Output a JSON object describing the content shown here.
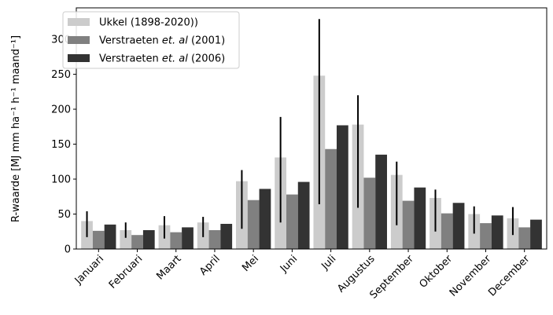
{
  "chart_data": {
    "type": "bar",
    "title": "",
    "xlabel": "",
    "ylabel": "R-waarde [MJ mm ha⁻¹ h⁻¹ maand⁻¹]",
    "ylim": [
      0,
      345
    ],
    "yticks": [
      0,
      50,
      100,
      150,
      200,
      250,
      300
    ],
    "legend_position": "top-left",
    "categories": [
      "Januari",
      "Februari",
      "Maart",
      "April",
      "Mei",
      "Juni",
      "Juli",
      "Augustus",
      "September",
      "Oktober",
      "November",
      "December"
    ],
    "series": [
      {
        "name": "Ukkel (1898-2020))",
        "color": "#cccccc",
        "values": [
          40,
          27,
          34,
          38,
          97,
          131,
          248,
          178,
          106,
          73,
          50,
          44
        ],
        "error_low": [
          17,
          16,
          15,
          17,
          29,
          38,
          64,
          59,
          34,
          25,
          22,
          20
        ],
        "error_high": [
          54,
          38,
          47,
          46,
          113,
          189,
          329,
          220,
          125,
          85,
          61,
          60
        ]
      },
      {
        "name": "Verstraeten et. al (2001)",
        "name_prefix": "Verstraeten ",
        "name_italic": "et. al",
        "name_suffix": " (2001)",
        "color": "#808080",
        "values": [
          26,
          20,
          24,
          27,
          70,
          78,
          143,
          102,
          69,
          51,
          37,
          31
        ]
      },
      {
        "name": "Verstraeten et. al (2006)",
        "name_prefix": "Verstraeten ",
        "name_italic": "et. al",
        "name_suffix": " (2006)",
        "color": "#333333",
        "values": [
          35,
          27,
          31,
          36,
          86,
          96,
          177,
          135,
          88,
          66,
          48,
          42
        ]
      }
    ]
  }
}
